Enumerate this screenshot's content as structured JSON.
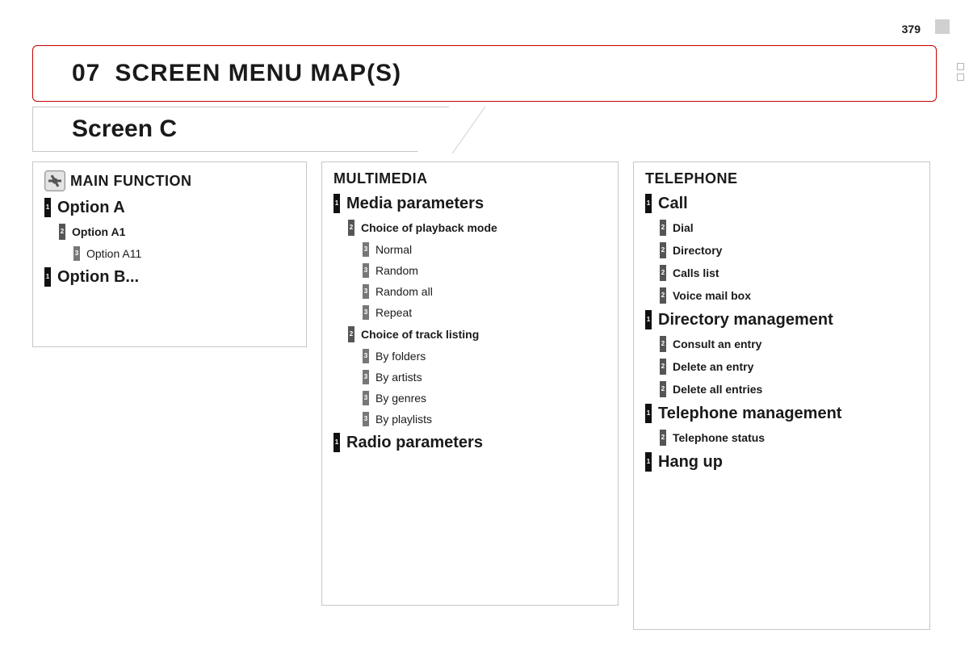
{
  "page_number": "379",
  "header": {
    "number": "07",
    "title": "SCREEN MENU MAP(S)"
  },
  "screen_tab": "Screen C",
  "columns": [
    {
      "title": "MAIN FUNCTION",
      "has_icon": true,
      "items": [
        {
          "level": 1,
          "label": "Option A"
        },
        {
          "level": 2,
          "label": "Option A1"
        },
        {
          "level": 3,
          "label": "Option A11"
        },
        {
          "level": 1,
          "label": "Option B..."
        }
      ]
    },
    {
      "title": "MULTIMEDIA",
      "has_icon": false,
      "items": [
        {
          "level": 1,
          "label": "Media parameters"
        },
        {
          "level": 2,
          "label": "Choice of playback mode"
        },
        {
          "level": 3,
          "label": "Normal"
        },
        {
          "level": 3,
          "label": "Random"
        },
        {
          "level": 3,
          "label": "Random all"
        },
        {
          "level": 3,
          "label": "Repeat"
        },
        {
          "level": 2,
          "label": "Choice of track listing"
        },
        {
          "level": 3,
          "label": "By folders"
        },
        {
          "level": 3,
          "label": "By artists"
        },
        {
          "level": 3,
          "label": "By genres"
        },
        {
          "level": 3,
          "label": "By playlists"
        },
        {
          "level": 1,
          "label": "Radio parameters"
        }
      ]
    },
    {
      "title": "TELEPHONE",
      "has_icon": false,
      "items": [
        {
          "level": 1,
          "label": "Call"
        },
        {
          "level": 2,
          "label": "Dial"
        },
        {
          "level": 2,
          "label": "Directory"
        },
        {
          "level": 2,
          "label": "Calls list"
        },
        {
          "level": 2,
          "label": "Voice mail box"
        },
        {
          "level": 1,
          "label": "Directory management"
        },
        {
          "level": 2,
          "label": "Consult an entry"
        },
        {
          "level": 2,
          "label": "Delete an entry"
        },
        {
          "level": 2,
          "label": "Delete all entries"
        },
        {
          "level": 1,
          "label": "Telephone management"
        },
        {
          "level": 2,
          "label": "Telephone status"
        },
        {
          "level": 1,
          "label": "Hang up"
        }
      ]
    }
  ]
}
